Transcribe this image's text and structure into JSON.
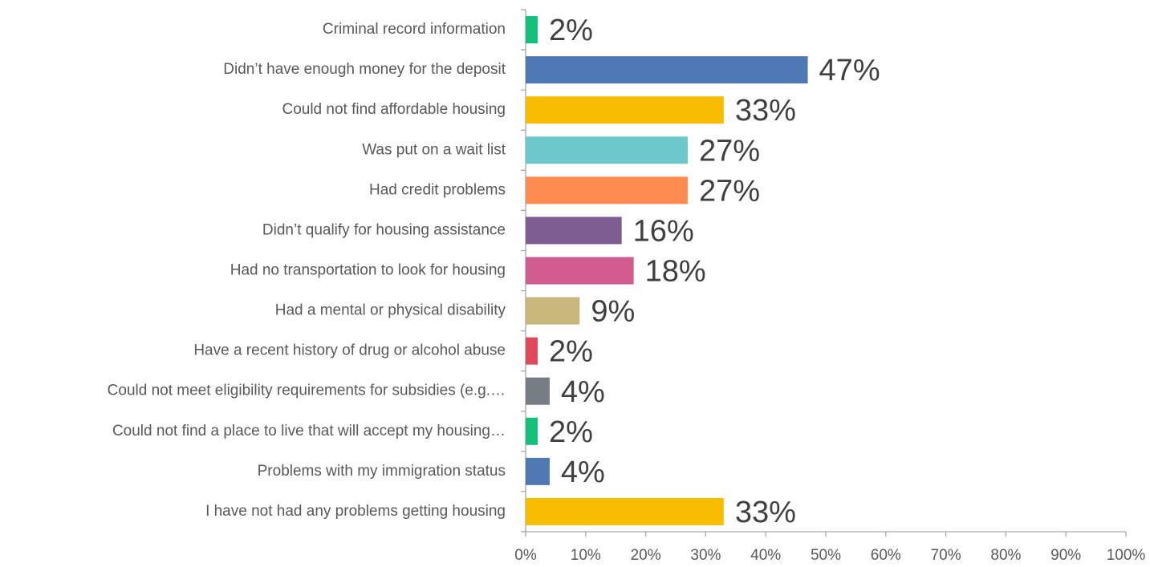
{
  "chart_data": {
    "type": "hbar",
    "categories": [
      "Criminal record information",
      "Didn’t have enough money for the deposit",
      "Could not find affordable housing",
      "Was put on a wait list",
      "Had credit problems",
      "Didn’t qualify for housing assistance",
      "Had no transportation to look for housing",
      "Had a mental or physical disability",
      "Have a recent history of drug or alcohol abuse",
      "Could not meet eligibility requirements for subsidies (e.g.…",
      "Could not find a place to live that will accept my housing…",
      "Problems with my immigration status",
      "I have not had any problems getting housing"
    ],
    "values": [
      2,
      47,
      33,
      27,
      27,
      16,
      18,
      9,
      2,
      4,
      2,
      4,
      33
    ],
    "value_labels": [
      "2%",
      "47%",
      "33%",
      "27%",
      "27%",
      "16%",
      "18%",
      "9%",
      "2%",
      "4%",
      "2%",
      "4%",
      "33%"
    ],
    "colors": [
      "#13c17a",
      "#4e79b5",
      "#f8bc00",
      "#6dc8cc",
      "#fe8b50",
      "#7c5c91",
      "#d25c8f",
      "#c8b87b",
      "#df4a5a",
      "#777d85",
      "#13c17a",
      "#4e79b5",
      "#f8bc00"
    ],
    "xlim": [
      0,
      100
    ],
    "xticks": [
      {
        "value": 0,
        "label": "0%"
      },
      {
        "value": 10,
        "label": "10%"
      },
      {
        "value": 20,
        "label": "20%"
      },
      {
        "value": 30,
        "label": "30%"
      },
      {
        "value": 40,
        "label": "40%"
      },
      {
        "value": 50,
        "label": "50%"
      },
      {
        "value": 60,
        "label": "60%"
      },
      {
        "value": 70,
        "label": "70%"
      },
      {
        "value": 80,
        "label": "80%"
      },
      {
        "value": 90,
        "label": "90%"
      },
      {
        "value": 100,
        "label": "100%"
      }
    ]
  }
}
